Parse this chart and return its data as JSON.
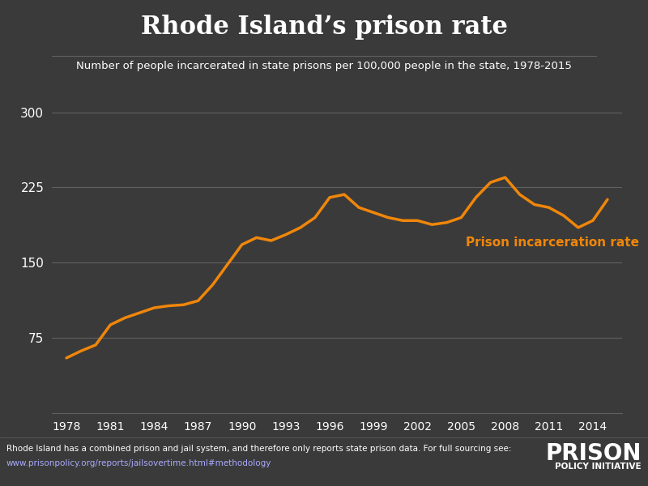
{
  "title": "Rhode Island’s prison rate",
  "subtitle": "Number of people incarcerated in state prisons per 100,000 people in the state, 1978-2015",
  "years": [
    1978,
    1979,
    1980,
    1981,
    1982,
    1983,
    1984,
    1985,
    1986,
    1987,
    1988,
    1989,
    1990,
    1991,
    1992,
    1993,
    1994,
    1995,
    1996,
    1997,
    1998,
    1999,
    2000,
    2001,
    2002,
    2003,
    2004,
    2005,
    2006,
    2007,
    2008,
    2009,
    2010,
    2011,
    2012,
    2013,
    2014,
    2015
  ],
  "prison_rate": [
    55,
    62,
    68,
    88,
    95,
    100,
    105,
    107,
    108,
    112,
    128,
    148,
    168,
    175,
    172,
    178,
    185,
    195,
    215,
    218,
    205,
    200,
    195,
    192,
    192,
    188,
    190,
    195,
    215,
    230,
    235,
    218,
    208,
    205,
    197,
    185,
    192,
    213
  ],
  "line_color": "#f0860a",
  "bg_color": "#3a3a3a",
  "text_color": "#ffffff",
  "grid_color": "#606060",
  "label_text": "Prison incarceration rate",
  "label_color": "#f0860a",
  "yticks": [
    75,
    150,
    225,
    300
  ],
  "xticks": [
    1978,
    1981,
    1984,
    1987,
    1990,
    1993,
    1996,
    1999,
    2002,
    2005,
    2008,
    2011,
    2014
  ],
  "ylim": [
    0,
    315
  ],
  "xlim": [
    1977,
    2016
  ],
  "footer_line1": "Rhode Island has a combined prison and jail system, and therefore only reports state prison data. For full sourcing see:",
  "footer_line2": "www.prisonpolicy.org/reports/jailsovertime.html#methodology",
  "logo_text1": "PRISON",
  "logo_text2": "POLICY INITIATIVE"
}
